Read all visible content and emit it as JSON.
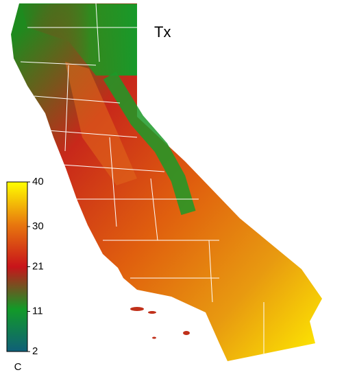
{
  "title": "Tx",
  "colorbar": {
    "unit": "C",
    "lim": [
      2,
      40
    ],
    "ticks": [
      2,
      11,
      21,
      30,
      40
    ],
    "colors": [
      "#0f5f78",
      "#129a28",
      "#c8141a",
      "#e8780e",
      "#ffff00"
    ]
  }
}
